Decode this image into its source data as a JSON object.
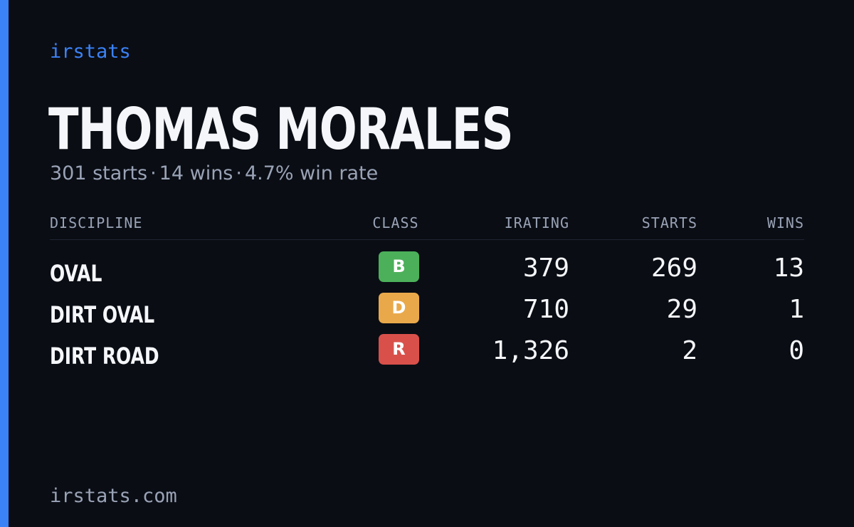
{
  "brand": "irstats",
  "driver": {
    "name": "THOMAS MORALES",
    "summary": {
      "starts": "301 starts",
      "wins": "14 wins",
      "win_rate": "4.7% win rate",
      "separator": "·"
    }
  },
  "table": {
    "headers": {
      "discipline": "DISCIPLINE",
      "class": "CLASS",
      "irating": "IRATING",
      "starts": "STARTS",
      "wins": "WINS"
    },
    "rows": [
      {
        "discipline": "OVAL",
        "class": "B",
        "class_color": "#4cb05a",
        "irating": "379",
        "starts": "269",
        "wins": "13"
      },
      {
        "discipline": "DIRT OVAL",
        "class": "D",
        "class_color": "#e9a94b",
        "irating": "710",
        "starts": "29",
        "wins": "1"
      },
      {
        "discipline": "DIRT ROAD",
        "class": "R",
        "class_color": "#d9504b",
        "irating": "1,326",
        "starts": "2",
        "wins": "0"
      }
    ]
  },
  "footer": "irstats.com",
  "colors": {
    "accent": "#3b82f6",
    "background": "#0a0d14",
    "muted_text": "#9aa3b6"
  }
}
